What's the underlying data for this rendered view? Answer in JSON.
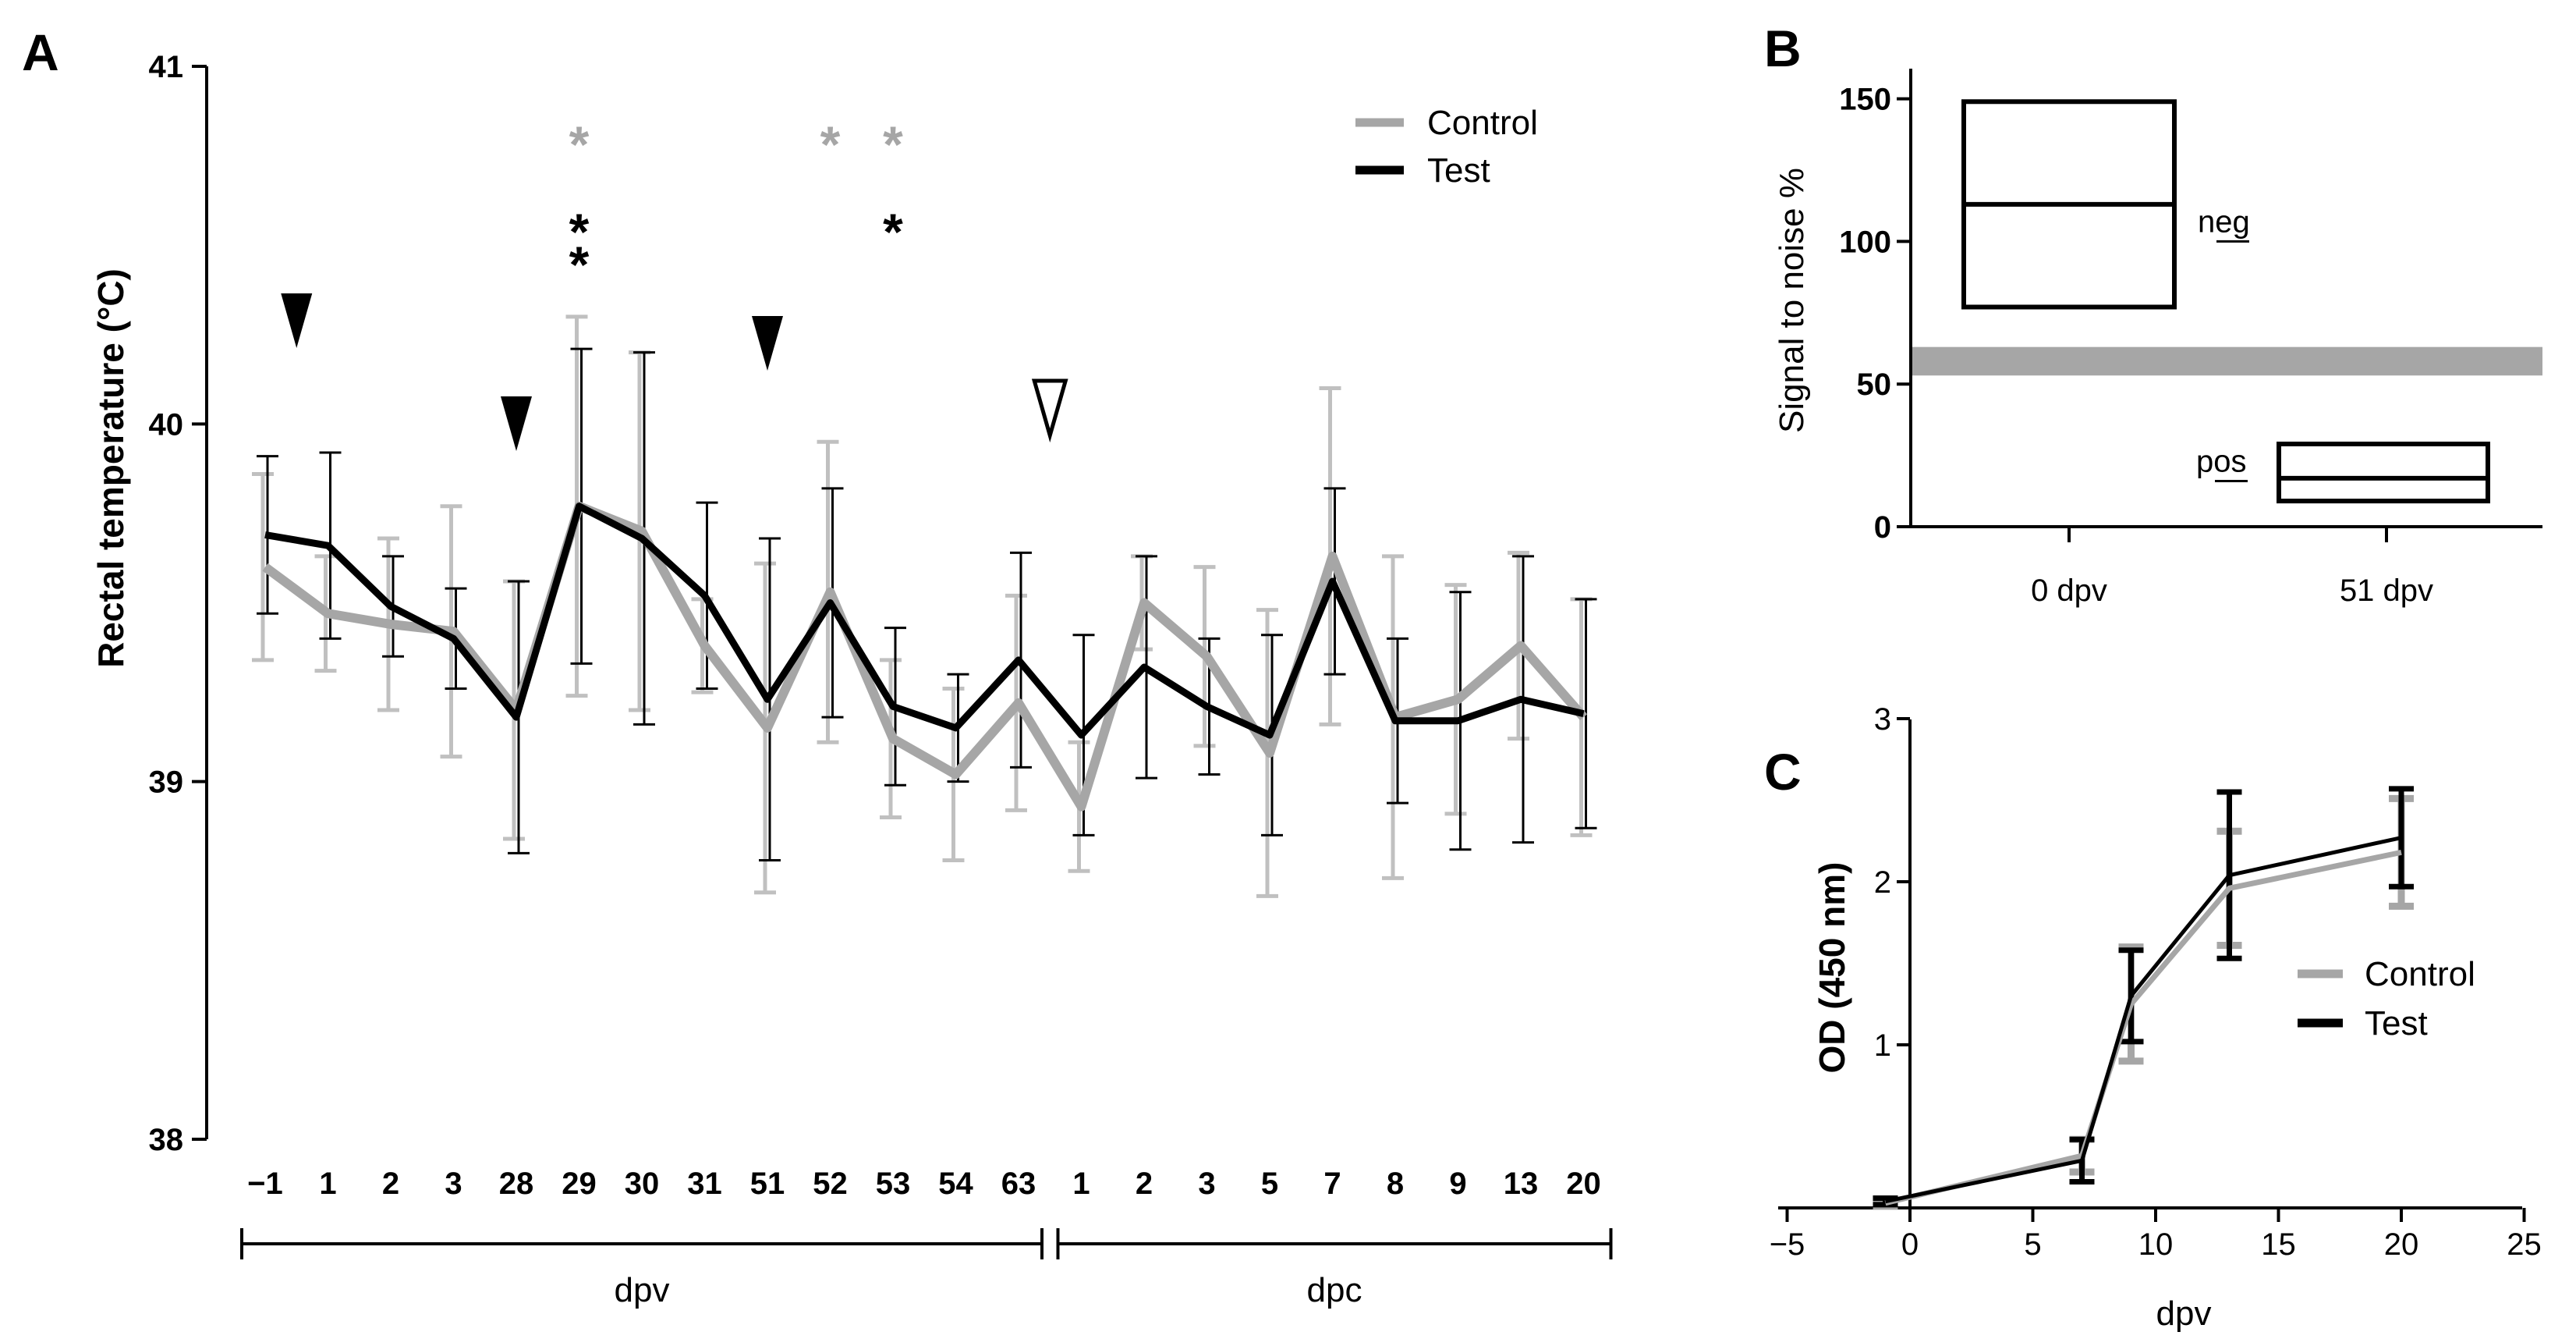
{
  "panels": [
    {
      "letter": "A",
      "chart_data": {
        "type": "line",
        "ylabel": "Rectal temperature (°C)",
        "ylim": [
          38,
          41
        ],
        "yticks": [
          38,
          39,
          40,
          41
        ],
        "categories": [
          "−1",
          "1",
          "2",
          "3",
          "28",
          "29",
          "30",
          "31",
          "51",
          "52",
          "53",
          "54",
          "63",
          "1",
          "2",
          "3",
          "5",
          "7",
          "8",
          "9",
          "13",
          "20"
        ],
        "groups": [
          {
            "label": "dpv",
            "from": 0,
            "to": 12
          },
          {
            "label": "dpc",
            "from": 13,
            "to": 21
          }
        ],
        "series": [
          {
            "name": "Control",
            "color": "#a6a6a6",
            "values": [
              39.6,
              39.47,
              39.44,
              39.42,
              39.2,
              39.77,
              39.7,
              39.38,
              39.15,
              39.53,
              39.12,
              39.02,
              39.22,
              38.93,
              39.5,
              39.35,
              39.08,
              39.63,
              39.18,
              39.23,
              39.38,
              39.18
            ],
            "err": [
              0.26,
              0.16,
              0.24,
              0.35,
              0.36,
              0.53,
              0.5,
              0.13,
              0.46,
              0.42,
              0.22,
              0.24,
              0.3,
              0.18,
              0.13,
              0.25,
              0.4,
              0.47,
              0.45,
              0.32,
              0.26,
              0.33
            ]
          },
          {
            "name": "Test",
            "color": "#000000",
            "values": [
              39.69,
              39.66,
              39.49,
              39.4,
              39.18,
              39.77,
              39.68,
              39.52,
              39.23,
              39.5,
              39.21,
              39.15,
              39.34,
              39.13,
              39.32,
              39.21,
              39.13,
              39.56,
              39.17,
              39.17,
              39.23,
              39.19
            ],
            "err": [
              0.22,
              0.26,
              0.14,
              0.14,
              0.38,
              0.44,
              0.52,
              0.26,
              0.45,
              0.32,
              0.22,
              0.15,
              0.3,
              0.28,
              0.31,
              0.19,
              0.28,
              0.26,
              0.23,
              0.36,
              0.4,
              0.32
            ]
          }
        ],
        "markers": [
          {
            "type": "filled-triangle",
            "at": 0.5
          },
          {
            "type": "filled-triangle",
            "at": 4
          },
          {
            "type": "filled-triangle",
            "at": 8
          },
          {
            "type": "open-triangle",
            "at": 12.5
          }
        ],
        "annotations": [
          {
            "text": "*",
            "at": 5,
            "row": 0,
            "color": "#a6a6a6"
          },
          {
            "text": "*",
            "at": 9,
            "row": 0,
            "color": "#a6a6a6"
          },
          {
            "text": "*",
            "at": 10,
            "row": 0,
            "color": "#a6a6a6"
          },
          {
            "text": "*",
            "at": 5,
            "row": 1,
            "color": "#000000"
          },
          {
            "text": "*",
            "at": 5,
            "row": 2,
            "color": "#000000"
          },
          {
            "text": "*",
            "at": 10,
            "row": 1,
            "color": "#000000"
          }
        ],
        "legend": "top-right"
      }
    },
    {
      "letter": "B",
      "chart_data": {
        "type": "box",
        "ylabel": "Signal to noise %",
        "ylim": [
          0,
          160
        ],
        "yticks": [
          0,
          50,
          100,
          150
        ],
        "categories": [
          "0 dpv",
          "51 dpv"
        ],
        "boxes": [
          {
            "category": "0 dpv",
            "min": 77,
            "median": 113,
            "max": 149
          },
          {
            "category": "51 dpv",
            "min": 9,
            "median": 17,
            "max": 29
          }
        ],
        "cutoff_band": [
          53,
          63
        ],
        "labels": [
          {
            "text": "neg",
            "y": 100
          },
          {
            "text": "pos",
            "y": 16
          }
        ]
      }
    },
    {
      "letter": "C",
      "chart_data": {
        "type": "line",
        "xlabel": "dpv",
        "ylabel": "OD (450 nm)",
        "xlim": [
          -5,
          25
        ],
        "ylim": [
          0,
          3
        ],
        "xticks": [
          -5,
          0,
          5,
          10,
          15,
          20,
          25
        ],
        "yticks": [
          1,
          2,
          3
        ],
        "series": [
          {
            "name": "Control",
            "color": "#a6a6a6",
            "x": [
              -1,
              7,
              9,
              13,
              20
            ],
            "y": [
              0.03,
              0.32,
              1.25,
              1.96,
              2.18
            ],
            "err": [
              0.02,
              0.1,
              0.35,
              0.35,
              0.33
            ]
          },
          {
            "name": "Test",
            "color": "#000000",
            "x": [
              -1,
              7,
              9,
              13,
              20
            ],
            "y": [
              0.04,
              0.29,
              1.3,
              2.04,
              2.27
            ],
            "err": [
              0.02,
              0.13,
              0.28,
              0.51,
              0.3
            ]
          }
        ],
        "legend": "bottom-right"
      }
    }
  ]
}
